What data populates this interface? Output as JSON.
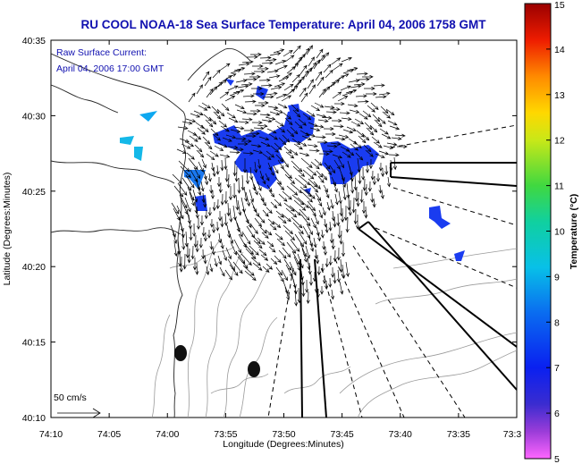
{
  "chart_data": {
    "type": "map",
    "title": "RU COOL  NOAA-18  Sea Surface Temperature:  April 04, 2006 1758 GMT",
    "annotation": [
      "Raw Surface Current:",
      "April 04, 2006 17:00 GMT"
    ],
    "xlabel": "Longitude (Degrees:Minutes)",
    "ylabel": "Latitude (Degrees:Minutes)",
    "x_ticks": [
      "74:10",
      "74:05",
      "74:00",
      "73:55",
      "73:50",
      "73:45",
      "73:40",
      "73:35",
      "73:3"
    ],
    "y_ticks": [
      "40:10",
      "40:15",
      "40:20",
      "40:25",
      "40:30",
      "40:35"
    ],
    "xlim": [
      -74.1667,
      -73.5
    ],
    "ylim": [
      40.1667,
      40.5833
    ],
    "scale_label": "50 cm/s",
    "colorbar": {
      "label": "Temperature (°C)",
      "range": [
        5,
        15
      ],
      "ticks": [
        "5",
        "6",
        "7",
        "8",
        "9",
        "10",
        "11",
        "12",
        "13",
        "14",
        "15"
      ]
    },
    "sst_patches_color": "#1a3cf0",
    "markers": [
      "radar-site",
      "radar-site"
    ],
    "colors": {
      "title": "#1010b0",
      "vectors": "#000000",
      "bathymetry": "#909090",
      "coast": "#222222"
    }
  }
}
